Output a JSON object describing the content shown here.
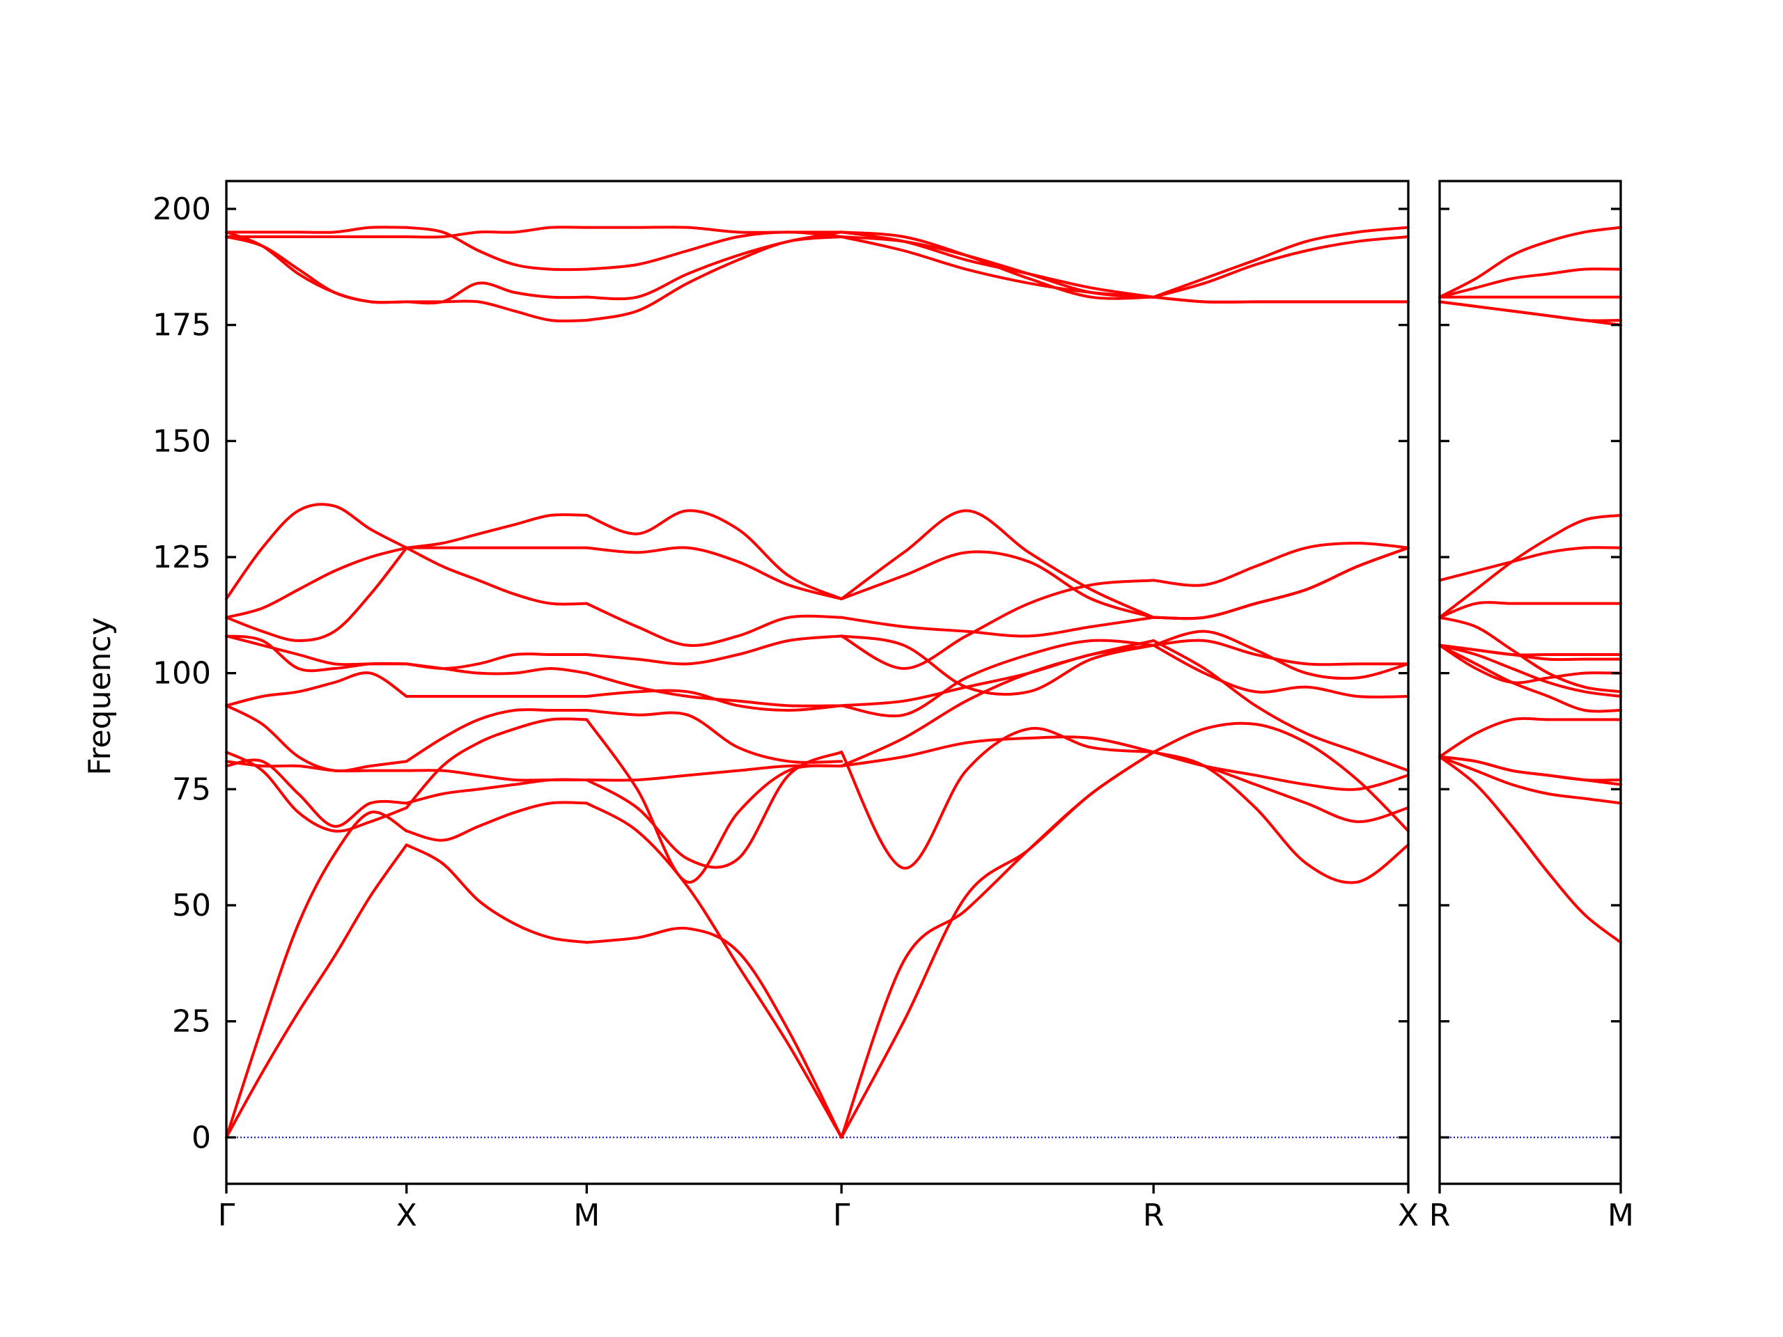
{
  "chart_data": {
    "type": "line",
    "ylabel": "Frequency",
    "xlabel": "",
    "title": "",
    "ylim": [
      -10,
      206
    ],
    "yticks": [
      0,
      25,
      50,
      75,
      100,
      125,
      150,
      175,
      200
    ],
    "grid": false,
    "legend": "none",
    "colors": {
      "bands": "#ff0000",
      "zero_line": "#0000cc",
      "axes": "#000000"
    },
    "panels": [
      {
        "high_symmetry_points": [
          {
            "label": "Γ",
            "x": 0.0
          },
          {
            "label": "X",
            "x": 0.5
          },
          {
            "label": "M",
            "x": 1.0
          },
          {
            "label": "Γ",
            "x": 1.707
          },
          {
            "label": "R",
            "x": 2.573
          },
          {
            "label": "X",
            "x": 3.28
          }
        ],
        "segments": [
          {
            "from": "Γ",
            "to": "X",
            "x": [
              0,
              0.1,
              0.2,
              0.3,
              0.4,
              0.5
            ],
            "bands": [
              [
                0,
                14,
                27,
                39,
                52,
                63
              ],
              [
                0,
                24,
                46,
                61,
                70,
                66
              ],
              [
                80,
                81,
                74,
                67,
                72,
                72
              ],
              [
                83,
                79,
                70,
                66,
                68,
                71
              ],
              [
                81,
                80,
                80,
                79,
                79,
                79
              ],
              [
                93,
                89,
                82,
                79,
                80,
                81
              ],
              [
                93,
                95,
                96,
                98,
                100,
                95
              ],
              [
                108,
                106,
                104,
                102,
                102,
                102
              ],
              [
                108,
                107,
                101,
                101,
                102,
                102
              ],
              [
                112,
                114,
                118,
                122,
                125,
                127
              ],
              [
                112,
                109,
                107,
                109,
                117,
                127
              ],
              [
                116,
                127,
                135,
                136,
                131,
                127
              ],
              [
                194,
                194,
                194,
                194,
                194,
                194
              ],
              [
                195,
                195,
                195,
                195,
                196,
                196
              ],
              [
                195,
                192,
                186,
                182,
                180,
                180
              ],
              [
                194,
                192,
                187,
                182,
                180,
                180
              ]
            ]
          },
          {
            "from": "X",
            "to": "M",
            "x": [
              0.5,
              0.6,
              0.7,
              0.8,
              0.9,
              1.0
            ],
            "bands": [
              [
                63,
                59,
                51,
                46,
                43,
                42
              ],
              [
                66,
                64,
                67,
                70,
                72,
                72
              ],
              [
                72,
                74,
                75,
                76,
                77,
                77
              ],
              [
                71,
                80,
                85,
                88,
                90,
                90
              ],
              [
                79,
                79,
                78,
                77,
                77,
                77
              ],
              [
                81,
                86,
                90,
                92,
                92,
                92
              ],
              [
                95,
                95,
                95,
                95,
                95,
                95
              ],
              [
                102,
                101,
                100,
                100,
                101,
                100
              ],
              [
                102,
                101,
                102,
                104,
                104,
                104
              ],
              [
                127,
                123,
                120,
                117,
                115,
                115
              ],
              [
                127,
                127,
                127,
                127,
                127,
                127
              ],
              [
                127,
                128,
                130,
                132,
                134,
                134
              ],
              [
                194,
                194,
                195,
                195,
                196,
                196
              ],
              [
                196,
                195,
                191,
                188,
                187,
                187
              ],
              [
                180,
                180,
                180,
                178,
                176,
                176
              ],
              [
                180,
                180,
                184,
                182,
                181,
                181
              ]
            ]
          },
          {
            "from": "M",
            "to": "Γ",
            "x": [
              1.0,
              1.14,
              1.28,
              1.42,
              1.56,
              1.707
            ],
            "bands": [
              [
                42,
                43,
                45,
                40,
                23,
                0
              ],
              [
                72,
                66,
                54,
                37,
                20,
                0
              ],
              [
                77,
                71,
                60,
                60,
                78,
                83
              ],
              [
                90,
                75,
                55,
                70,
                79,
                80
              ],
              [
                77,
                77,
                78,
                79,
                80,
                80
              ],
              [
                92,
                91,
                91,
                84,
                81,
                81
              ],
              [
                95,
                96,
                96,
                93,
                92,
                93
              ],
              [
                100,
                97,
                95,
                94,
                93,
                93
              ],
              [
                104,
                103,
                102,
                104,
                107,
                108
              ],
              [
                115,
                110,
                106,
                108,
                112,
                112
              ],
              [
                127,
                126,
                127,
                124,
                119,
                116
              ],
              [
                134,
                130,
                135,
                131,
                121,
                116
              ],
              [
                196,
                196,
                196,
                195,
                195,
                195
              ],
              [
                187,
                188,
                191,
                194,
                195,
                194
              ],
              [
                176,
                178,
                184,
                189,
                193,
                194
              ],
              [
                181,
                181,
                186,
                190,
                193,
                195
              ]
            ]
          },
          {
            "from": "Γ",
            "to": "R",
            "x": [
              1.707,
              1.88,
              2.053,
              2.227,
              2.4,
              2.573
            ],
            "bands": [
              [
                0,
                25,
                52,
                62,
                74,
                83
              ],
              [
                0,
                38,
                49,
                62,
                74,
                83
              ],
              [
                83,
                58,
                79,
                88,
                84,
                83
              ],
              [
                80,
                82,
                85,
                86,
                86,
                83
              ],
              [
                80,
                86,
                94,
                100,
                104,
                107
              ],
              [
                93,
                94,
                97,
                100,
                104,
                106
              ],
              [
                93,
                91,
                99,
                104,
                107,
                106
              ],
              [
                108,
                106,
                97,
                96,
                103,
                106
              ],
              [
                108,
                101,
                108,
                115,
                119,
                120
              ],
              [
                112,
                110,
                109,
                108,
                110,
                112
              ],
              [
                116,
                126,
                135,
                126,
                118,
                112
              ],
              [
                116,
                121,
                126,
                124,
                116,
                112
              ],
              [
                195,
                193,
                189,
                186,
                183,
                181
              ],
              [
                194,
                191,
                187,
                184,
                182,
                181
              ],
              [
                194,
                193,
                190,
                186,
                182,
                181
              ],
              [
                195,
                194,
                190,
                185,
                181,
                181
              ]
            ]
          },
          {
            "from": "R",
            "to": "X",
            "x": [
              2.573,
              2.714,
              2.856,
              2.997,
              3.139,
              3.28
            ],
            "bands": [
              [
                83,
                80,
                71,
                59,
                55,
                63
              ],
              [
                83,
                88,
                89,
                85,
                77,
                66
              ],
              [
                83,
                80,
                76,
                72,
                68,
                71
              ],
              [
                83,
                80,
                78,
                76,
                75,
                78
              ],
              [
                107,
                101,
                93,
                87,
                83,
                79
              ],
              [
                106,
                100,
                96,
                97,
                95,
                95
              ],
              [
                106,
                109,
                105,
                100,
                99,
                102
              ],
              [
                106,
                107,
                104,
                102,
                102,
                102
              ],
              [
                120,
                119,
                123,
                127,
                128,
                127
              ],
              [
                112,
                112,
                115,
                118,
                123,
                127
              ],
              [
                112,
                112,
                115,
                118,
                123,
                127
              ],
              [
                112,
                112,
                115,
                118,
                123,
                127
              ],
              [
                181,
                185,
                189,
                193,
                195,
                196
              ],
              [
                181,
                184,
                188,
                191,
                193,
                194
              ],
              [
                181,
                180,
                180,
                180,
                180,
                180
              ],
              [
                181,
                180,
                180,
                180,
                180,
                180
              ]
            ]
          }
        ]
      },
      {
        "high_symmetry_points": [
          {
            "label": "R",
            "x": 0.0
          },
          {
            "label": "M",
            "x": 0.5
          }
        ],
        "segments": [
          {
            "from": "R",
            "to": "M",
            "x": [
              0,
              0.1,
              0.2,
              0.3,
              0.4,
              0.5
            ],
            "bands": [
              [
                82,
                76,
                67,
                57,
                48,
                42
              ],
              [
                82,
                79,
                76,
                74,
                73,
                72
              ],
              [
                82,
                81,
                79,
                78,
                77,
                77
              ],
              [
                82,
                81,
                79,
                78,
                77,
                76
              ],
              [
                82,
                87,
                90,
                90,
                90,
                90
              ],
              [
                106,
                102,
                98,
                95,
                92,
                92
              ],
              [
                106,
                101,
                98,
                99,
                100,
                100
              ],
              [
                106,
                104,
                101,
                98,
                96,
                95
              ],
              [
                106,
                105,
                104,
                104,
                104,
                104
              ],
              [
                106,
                105,
                104,
                103,
                103,
                103
              ],
              [
                112,
                110,
                105,
                100,
                97,
                96
              ],
              [
                112,
                115,
                115,
                115,
                115,
                115
              ],
              [
                120,
                122,
                124,
                126,
                127,
                127
              ],
              [
                112,
                118,
                124,
                129,
                133,
                134
              ],
              [
                181,
                181,
                181,
                181,
                181,
                181
              ],
              [
                181,
                183,
                185,
                186,
                187,
                187
              ],
              [
                181,
                185,
                190,
                193,
                195,
                196
              ],
              [
                180,
                179,
                178,
                177,
                176,
                176
              ],
              [
                180,
                179,
                178,
                177,
                176,
                175
              ]
            ]
          }
        ]
      }
    ]
  }
}
